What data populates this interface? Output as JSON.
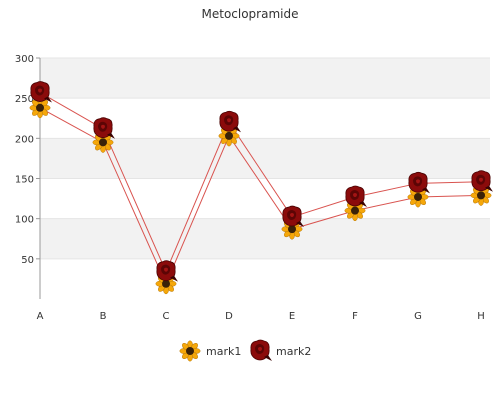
{
  "chart_data": {
    "type": "line",
    "title": "Metoclopramide",
    "xlabel": "",
    "ylabel": "",
    "categories": [
      "A",
      "B",
      "C",
      "D",
      "E",
      "F",
      "G",
      "H"
    ],
    "ylim": [
      0,
      300
    ],
    "yticks": [
      50,
      100,
      150,
      200,
      250,
      300
    ],
    "grid": "horizontal bands",
    "legend_position": "bottom",
    "series": [
      {
        "name": "mark1",
        "marker": "sunflower-icon",
        "values": [
          238,
          195,
          19,
          203,
          87,
          110,
          127,
          129
        ]
      },
      {
        "name": "mark2",
        "marker": "rose-icon",
        "values": [
          257,
          212,
          34,
          220,
          102,
          127,
          144,
          146
        ]
      }
    ]
  },
  "colors": {
    "line": "#d9534f",
    "band": "#f2f2f2",
    "grid": "#e5e5e5",
    "axis": "#999999",
    "sunflower_petal": "#f5a70a",
    "sunflower_center": "#3a2208",
    "rose": "#8b0b0b",
    "rose_dark": "#4a0303"
  }
}
